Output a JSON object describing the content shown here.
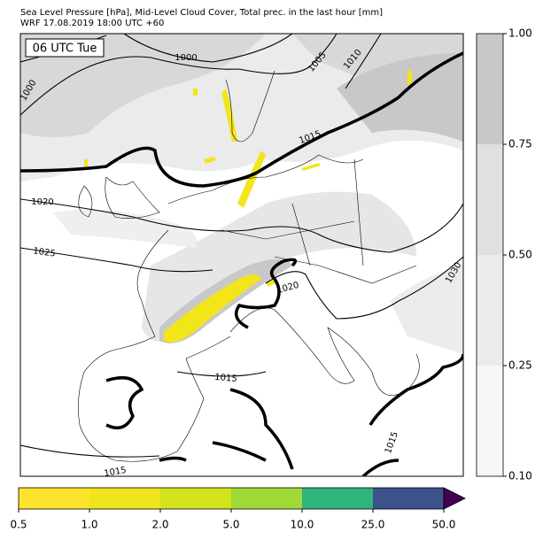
{
  "header": {
    "line1": "Sea Level Pressure [hPa], Mid-Level Cloud Cover, Total prec. in the last hour [mm]",
    "line2": "WRF 17.08.2019 18:00 UTC +60"
  },
  "map": {
    "time_label": "06 UTC Tue",
    "isobar_labels": [
      "1000",
      "1000",
      "1005",
      "1010",
      "1015",
      "1020",
      "1025",
      "1020",
      "1030",
      "1015",
      "1015",
      "1015"
    ]
  },
  "cloud_colorbar": {
    "ticks": [
      "1.00",
      "0.75",
      "0.50",
      "0.25",
      "0.10"
    ]
  },
  "precip_colorbar": {
    "ticks": [
      "0.5",
      "1.0",
      "2.0",
      "5.0",
      "10.0",
      "25.0",
      "50.0"
    ]
  }
}
